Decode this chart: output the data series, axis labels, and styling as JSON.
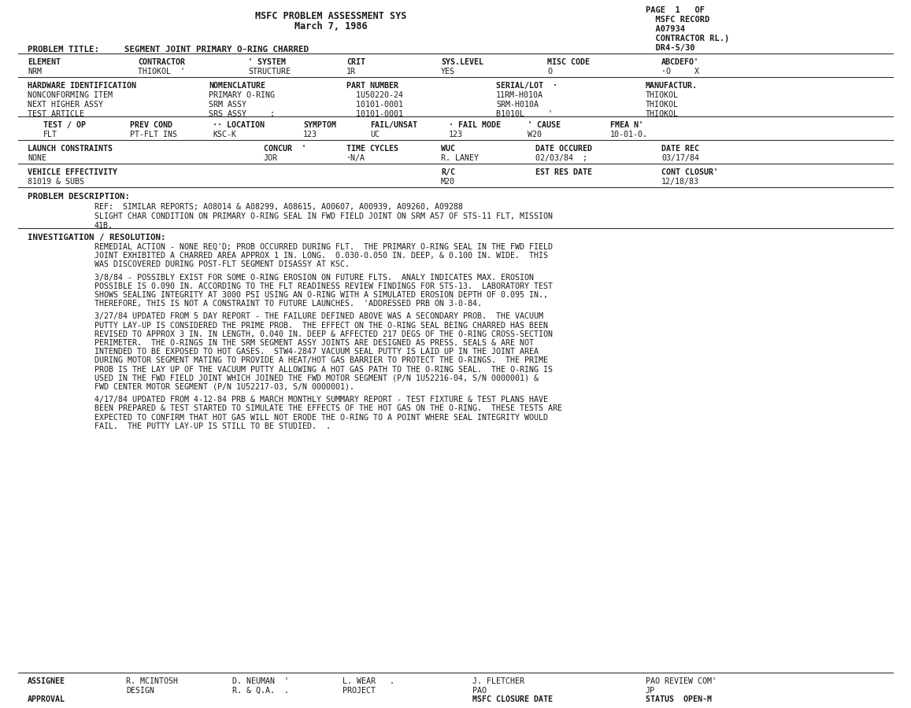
{
  "bg_color": "#ffffff",
  "text_color": "#1a1a1a",
  "title_line1": "MSFC PROBLEM ASSESSMENT SYS",
  "title_line2": "March 7, 1986",
  "page_info_lines": [
    "PAGE  1   OF",
    "  MSFC RECORD",
    "  A07934",
    "  CONTRACTOR RL.)",
    "  DR4-5/30"
  ],
  "problem_title_label": "PROBLEM TITLE:",
  "problem_title_value": "  SEGMENT JOINT PRIMARY O-RING CHARRED",
  "element_label": "ELEMENT",
  "element_val": "NRM",
  "contractor_label": "CONTRACTOR",
  "contractor_val": "THIOKOL  '",
  "system_label": "' SYSTEM",
  "system_val": "STRUCTURE",
  "crit_label": "CRIT",
  "crit_val": "1R",
  "syslevel_label": "SYS.LEVEL",
  "syslevel_val": "YES",
  "misc_label": "MISC CODE",
  "misc_val": "O",
  "abcdefo_label": "ABCDEFO'",
  "abcdefo_val": "·O     X",
  "hw_id_label": "HARDWARE IDENTIFICATION",
  "nomenclature_label": "NOMENCLATURE",
  "part_number_label": "PART NUMBER",
  "serial_lot_label": "SERIAL/LOT  ·",
  "manufacturer_label": "MANUFACTUR.",
  "hw_rows": [
    [
      "NONCONFORMING ITEM",
      "PRIMARY O-RING",
      "  1U50220-24",
      "11RM-H010A",
      "THIOKOL"
    ],
    [
      "NEXT HIGHER ASSY",
      "SRM ASSY",
      "  10101-0001",
      "SRM-H010A",
      "THIOKOL"
    ],
    [
      "TEST ARTICLE",
      "SRS ASSY     ;",
      "  10101-0001",
      "B1010L     '",
      "THIOKOL"
    ]
  ],
  "test_label": "TEST / OP",
  "test_val": "FLT",
  "prevcond_label": "PREV COND",
  "prevcond_val": "PT-FLT INS",
  "location_label": "·· LOCATION",
  "location_val": "KSC-K",
  "symptom_label": "SYMPTOM",
  "symptom_val": "123",
  "failunsat_label": "FAIL/UNSAT",
  "failunsat_val": "UC",
  "failmode_label": "· FAIL MODE",
  "failmode_val": "123",
  "cause_label": "' CAUSE",
  "cause_val": "W20",
  "fmea_label": "FMEA N'",
  "fmea_val": "10-01-0.",
  "launch_label": "LAUNCH CONSTRAINTS",
  "launch_val": "NONE",
  "concur_label": "CONCUR  '",
  "concur_val": "JOR",
  "timecycles_label": "TIME CYCLES",
  "timecycles_val": "·N/A",
  "wuc_label": "WUC",
  "wuc_val": "R. LANEY",
  "dateoccured_label": "DATE OCCURED",
  "dateoccured_val": "02/03/84  ;",
  "daterec_label": "DATE REC",
  "daterec_val": "03/17/84",
  "veh_eff_label": "VEHICLE EFFECTIVITY",
  "veh_eff_val": "81019 & SUBS",
  "rc_label": "R/C",
  "rc_val": "M20",
  "est_res_label": "EST RES DATE",
  "cont_closure_label": "CONT CLOSUR'",
  "cont_closure_val": "12/18/83",
  "prob_desc_label": "PROBLEM DESCRIPTION:",
  "prob_desc_lines": [
    "REF:  SIMILAR REPORTS; A08014 & A08299, A08615, A00607, A00939, A09260, A09288",
    "SLIGHT CHAR CONDITION ON PRIMARY O-RING SEAL IN FWD FIELD JOINT ON SRM A57 OF STS-11 FLT, MISSION",
    "41B."
  ],
  "inv_label": "INVESTIGATION / RESOLUTION:",
  "inv_paragraphs": [
    [
      "REMEDIAL ACTION - NONE REQ'D; PROB OCCURRED DURING FLT.  THE PRIMARY O-RING SEAL IN THE FWD FIELD",
      "JOINT EXHIBITED A CHARRED AREA APPROX 1 IN. LONG.  0.030-0.050 IN. DEEP, & 0.100 IN. WIDE.  THIS",
      "WAS DISCOVERED DURING POST-FLT SEGMENT DISASSY AT KSC."
    ],
    [
      "3/8/84 - POSSIBLY EXIST FOR SOME O-RING EROSION ON FUTURE FLTS.  ANALY INDICATES MAX. EROSION",
      "POSSIBLE IS 0.090 IN. ACCORDING TO THE FLT READINESS REVIEW FINDINGS FOR STS-13.  LABORATORY TEST",
      "SHOWS SEALING INTEGRITY AT 3000 PSI USING AN O-RING WITH A SIMULATED EROSION DEPTH OF 0.095 IN.,",
      "THEREFORE, THIS IS NOT A CONSTRAINT TO FUTURE LAUNCHES.  'ADDRESSED PRB ON 3-0-84."
    ],
    [
      "3/27/84 UPDATED FROM 5 DAY REPORT - THE FAILURE DEFINED ABOVE WAS A SECONDARY PROB.  THE VACUUM",
      "PUTTY LAY-UP IS CONSIDERED THE PRIME PROB.  THE EFFECT ON THE O-RING SEAL BEING CHARRED HAS BEEN",
      "REVISED TO APPROX 3 IN. IN LENGTH, 0.040 IN. DEEP & AFFECTED 217 DEGS OF THE O-RING CROSS-SECTION",
      "PERIMETER.  THE O-RINGS IN THE SRM SEGMENT ASSY JOINTS ARE DESIGNED AS PRESS. SEALS & ARE NOT",
      "INTENDED TO BE EXPOSED TO HOT GASES.  STW4-2847 VACUUM SEAL PUTTY IS LAID UP IN THE JOINT AREA",
      "DURING MOTOR SEGMENT MATING TO PROVIDE A HEAT/HOT GAS BARRIER TO PROTECT THE O-RINGS.  THE PRIME",
      "PROB IS THE LAY UP OF THE VACUUM PUTTY ALLOWING A HOT GAS PATH TO THE O-RING SEAL.  THE O-RING IS",
      "USED IN THE FWD FIELD JOINT WHICH JOINED THE FWD MOTOR SEGMENT (P/N 1U52216-04, S/N 0000001) &",
      "FWD CENTER MOTOR SEGMENT (P/N 1U52217-03, S/N 0000001)."
    ],
    [
      "4/17/84 UPDATED FROM 4-12-84 PRB & MARCH MONTHLY SUMMARY REPORT - TEST FIXTURE & TEST PLANS HAVE",
      "BEEN PREPARED & TEST STARTED TO SIMULATE THE EFFECTS OF THE HOT GAS ON THE O-RING.  THESE TESTS ARE",
      "EXPECTED TO CONFIRM THAT HOT GAS WILL NOT ERODE THE O-RING TO A POINT WHERE SEAL INTEGRITY WOULD",
      "FAIL.  THE PUTTY LAY-UP IS STILL TO BE STUDIED.  ."
    ]
  ],
  "assignee_label": "ASSIGNEE",
  "assignee_cols": [
    {
      "name": "R. MCINTOSH",
      "role": "DESIGN"
    },
    {
      "name": "D. NEUMAN  '",
      "role": "R. & Q.A.  ."
    },
    {
      "name": "L. WEAR   .",
      "role": "PROJECT"
    },
    {
      "name": "J. FLETCHER",
      "role": "PAO"
    },
    {
      "name": "PAO REVIEW COM'",
      "role": "JP"
    }
  ],
  "approval_label": "APPROVAL",
  "msfc_closure_label": "MSFC CLOSURE DATE",
  "status_label": "STATUS  OPEN-M",
  "line_color": "#333333"
}
